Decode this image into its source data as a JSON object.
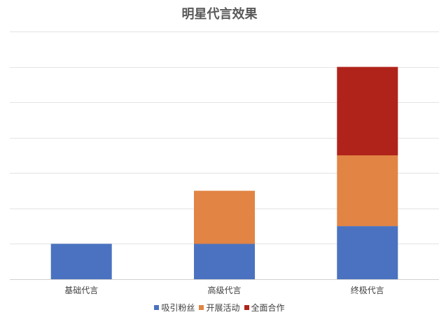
{
  "chart_data": {
    "type": "bar",
    "stacked": true,
    "title": "明星代言效果",
    "categories": [
      "基础代言",
      "高级代言",
      "终极代言"
    ],
    "series": [
      {
        "name": "吸引粉丝",
        "color": "#4a72c0",
        "values": [
          1,
          1,
          1.5
        ]
      },
      {
        "name": "开展活动",
        "color": "#e18444",
        "values": [
          0,
          1.5,
          2
        ]
      },
      {
        "name": "全面合作",
        "color": "#b0231a",
        "values": [
          0,
          0,
          2.5
        ]
      }
    ],
    "ylim": [
      0,
      7
    ],
    "y_gridlines": [
      0,
      1,
      2,
      3,
      4,
      5,
      6,
      7
    ],
    "y_tick_labels_visible": false,
    "grid": true,
    "legend": "bottom"
  }
}
